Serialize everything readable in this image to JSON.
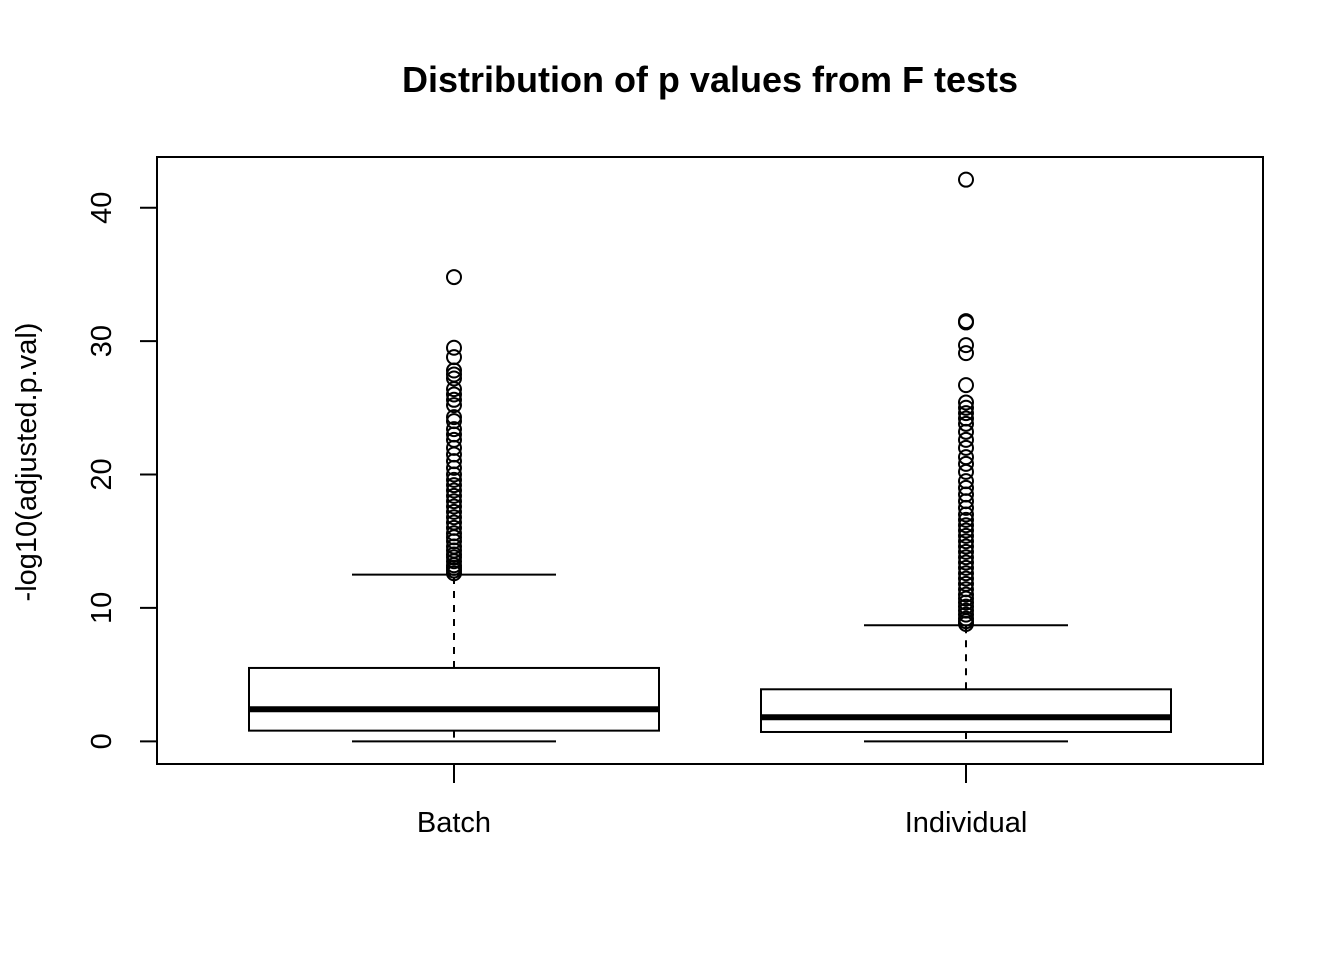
{
  "chart_data": {
    "type": "boxplot",
    "title": "Distribution of p values from F tests",
    "xlabel": "",
    "ylabel": "-log10(adjusted.p.val)",
    "ylim": [
      -1.7,
      43.8
    ],
    "yticks": [
      0,
      10,
      20,
      30,
      40
    ],
    "categories": [
      "Batch",
      "Individual"
    ],
    "boxes": [
      {
        "name": "Batch",
        "whisker_low": 0.0,
        "q1": 0.8,
        "median": 2.4,
        "q3": 5.5,
        "whisker_high": 12.5,
        "outliers": [
          12.6,
          12.8,
          13.0,
          13.2,
          13.5,
          13.8,
          14.0,
          14.3,
          14.6,
          15.0,
          15.3,
          15.6,
          16.0,
          16.4,
          16.8,
          17.2,
          17.6,
          18.0,
          18.4,
          18.8,
          19.2,
          19.6,
          20.0,
          20.5,
          21.0,
          21.5,
          22.0,
          22.6,
          23.0,
          23.4,
          24.0,
          24.3,
          25.2,
          25.6,
          26.0,
          26.4,
          27.2,
          27.5,
          27.8,
          28.8,
          29.5,
          34.8
        ]
      },
      {
        "name": "Individual",
        "whisker_low": 0.0,
        "q1": 0.7,
        "median": 1.8,
        "q3": 3.9,
        "whisker_high": 8.7,
        "outliers": [
          8.8,
          9.0,
          9.2,
          9.5,
          9.8,
          10.1,
          10.4,
          10.7,
          11.0,
          11.4,
          11.8,
          12.2,
          12.6,
          13.0,
          13.4,
          13.8,
          14.2,
          14.6,
          15.0,
          15.4,
          15.8,
          16.2,
          16.6,
          17.0,
          17.5,
          18.0,
          18.5,
          19.0,
          19.5,
          20.2,
          20.8,
          21.3,
          22.0,
          22.6,
          23.2,
          23.8,
          24.2,
          24.6,
          25.0,
          25.4,
          26.7,
          29.1,
          29.7,
          31.4,
          31.5,
          42.1
        ]
      }
    ],
    "colors": {
      "stroke": "#000000",
      "background": "#ffffff"
    }
  }
}
